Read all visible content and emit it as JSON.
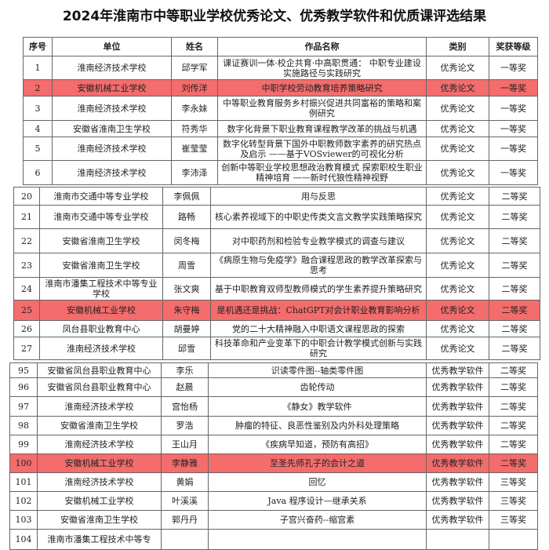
{
  "title": "2024年淮南市中等职业学校优秀论文、优秀教学软件和优质课评选结果",
  "headers": [
    "序号",
    "单位",
    "姓名",
    "作品名称",
    "类别",
    "奖获等级"
  ],
  "highlight_color": "#f46c6c",
  "sections": [
    {
      "rows": [
        {
          "no": "1",
          "unit": "淮南经济技术学校",
          "name": "邱学军",
          "work": "课证赛训一体·校企共育·中高职贯通： 中职专业建设实施路径与实践研究",
          "category": "优秀论文",
          "award": "一等奖",
          "highlight": false
        },
        {
          "no": "2",
          "unit": "安徽机械工业学校",
          "name": "刘传洋",
          "work": "中职学校劳动教育培养策略研究",
          "category": "优秀论文",
          "award": "一等奖",
          "highlight": true
        },
        {
          "no": "3",
          "unit": "淮南经济技术学校",
          "name": "李永妹",
          "work": "中等职业教育服务乡村振兴促进共同富裕的策略和案例研究",
          "category": "优秀论文",
          "award": "一等奖",
          "highlight": false
        },
        {
          "no": "4",
          "unit": "安徽省淮南卫生学校",
          "name": "符秀华",
          "work": "数字化背景下职业教育课程教学改革的挑战与机遇",
          "category": "优秀论文",
          "award": "一等奖",
          "highlight": false
        },
        {
          "no": "5",
          "unit": "淮南经济技术学校",
          "name": "崔莹莹",
          "work": "数字化转型背景下国外中职教师数字素养的研究热点及启示 ——基于VOSviewer的可视化分析",
          "category": "优秀论文",
          "award": "一等奖",
          "highlight": false
        },
        {
          "no": "6",
          "unit": "淮南经济技术学校",
          "name": "李沛泽",
          "work": "创新中等职业学校思想政治教育模式 探索职校生职业精神培育 ——新时代狼性精神视野",
          "category": "优秀论文",
          "award": "一等奖",
          "highlight": false
        }
      ]
    },
    {
      "rows": [
        {
          "no": "20",
          "unit": "淮南市交通中等专业学校",
          "name": "李佩佩",
          "work": "用与反思",
          "category": "优秀论文",
          "award": "二等奖",
          "highlight": false
        },
        {
          "no": "21",
          "unit": "淮南市交通中等专业学校",
          "name": "路畅",
          "work": "核心素养视域下的中职史传类文言文教学实践策略探究",
          "category": "优秀论文",
          "award": "二等奖",
          "highlight": false
        },
        {
          "no": "22",
          "unit": "安徽省淮南卫生学校",
          "name": "闵冬梅",
          "work": "对中职药剂和检验专业教学模式的调查与建议",
          "category": "优秀论文",
          "award": "二等奖",
          "highlight": false
        },
        {
          "no": "23",
          "unit": "安徽省淮南卫生学校",
          "name": "周雪",
          "work": "《病原生物与免疫学》融合课程思政的教学改革探索与思考",
          "category": "优秀论文",
          "award": "二等奖",
          "highlight": false
        },
        {
          "no": "24",
          "unit": "淮南市潘集工程技术中等专业学校",
          "name": "张文爽",
          "work": "基于中职教育双师型教师模式的学生素养提升策略研究",
          "category": "优秀论文",
          "award": "二等奖",
          "highlight": false
        },
        {
          "no": "25",
          "unit": "安徽机械工业学校",
          "name": "朱守梅",
          "work": "是机遇还是挑战：ChatGPT对会计职业教育影响分析",
          "category": "优秀论文",
          "award": "二等奖",
          "highlight": true
        },
        {
          "no": "26",
          "unit": "凤台县职业教育中心",
          "name": "胡曼婷",
          "work": "党的二十大精神融入中职语文课程思政的探索",
          "category": "优秀论文",
          "award": "二等奖",
          "highlight": false
        },
        {
          "no": "27",
          "unit": "淮南经济技术学校",
          "name": "邱雪",
          "work": "科技革命和产业变革下的中职会计教学模式创新与实践研究",
          "category": "优秀论文",
          "award": "二等奖",
          "highlight": false
        }
      ]
    },
    {
      "rows": [
        {
          "no": "95",
          "unit": "安徽省凤台县职业教育中心",
          "name": "李乐",
          "work": "识读零件图--轴类零件图",
          "category": "优秀教学软件",
          "award": "二等奖",
          "highlight": false
        },
        {
          "no": "96",
          "unit": "安徽省凤台县职业教育中心",
          "name": "赵晨",
          "work": "齿轮传动",
          "category": "优秀教学软件",
          "award": "二等奖",
          "highlight": false
        },
        {
          "no": "97",
          "unit": "淮南经济技术学校",
          "name": "宫怡杨",
          "work": "《静女》教学软件",
          "category": "优秀教学软件",
          "award": "二等奖",
          "highlight": false
        },
        {
          "no": "98",
          "unit": "安徽省淮南卫生学校",
          "name": "罗浩",
          "work": "肿瘤的特征、良恶性鉴别及内外科处理策略",
          "category": "优秀教学软件",
          "award": "二等奖",
          "highlight": false
        },
        {
          "no": "99",
          "unit": "淮南经济技术学校",
          "name": "王山月",
          "work": "《疾病早知道，预防有高招》",
          "category": "优秀教学软件",
          "award": "二等奖",
          "highlight": false
        },
        {
          "no": "100",
          "unit": "安徽机械工业学校",
          "name": "李静雅",
          "work": "至圣先师孔子的会计之道",
          "category": "优秀教学软件",
          "award": "二等奖",
          "highlight": true
        },
        {
          "no": "101",
          "unit": "淮南经济技术学校",
          "name": "黄娟",
          "work": "回忆",
          "category": "优秀教学软件",
          "award": "三等奖",
          "highlight": false
        },
        {
          "no": "102",
          "unit": "安徽机械工业学校",
          "name": "叶溪溪",
          "work": "Java 程序设计—继承关系",
          "category": "优秀教学软件",
          "award": "三等奖",
          "highlight": false
        },
        {
          "no": "103",
          "unit": "安徽省淮南卫生学校",
          "name": "郭丹丹",
          "work": "子宫兴奋药--缩宫素",
          "category": "优秀教学软件",
          "award": "三等奖",
          "highlight": false
        },
        {
          "no": "104",
          "unit": "淮南市潘集工程技术中等专",
          "name": "",
          "work": "",
          "category": "",
          "award": "",
          "highlight": false
        }
      ]
    }
  ]
}
